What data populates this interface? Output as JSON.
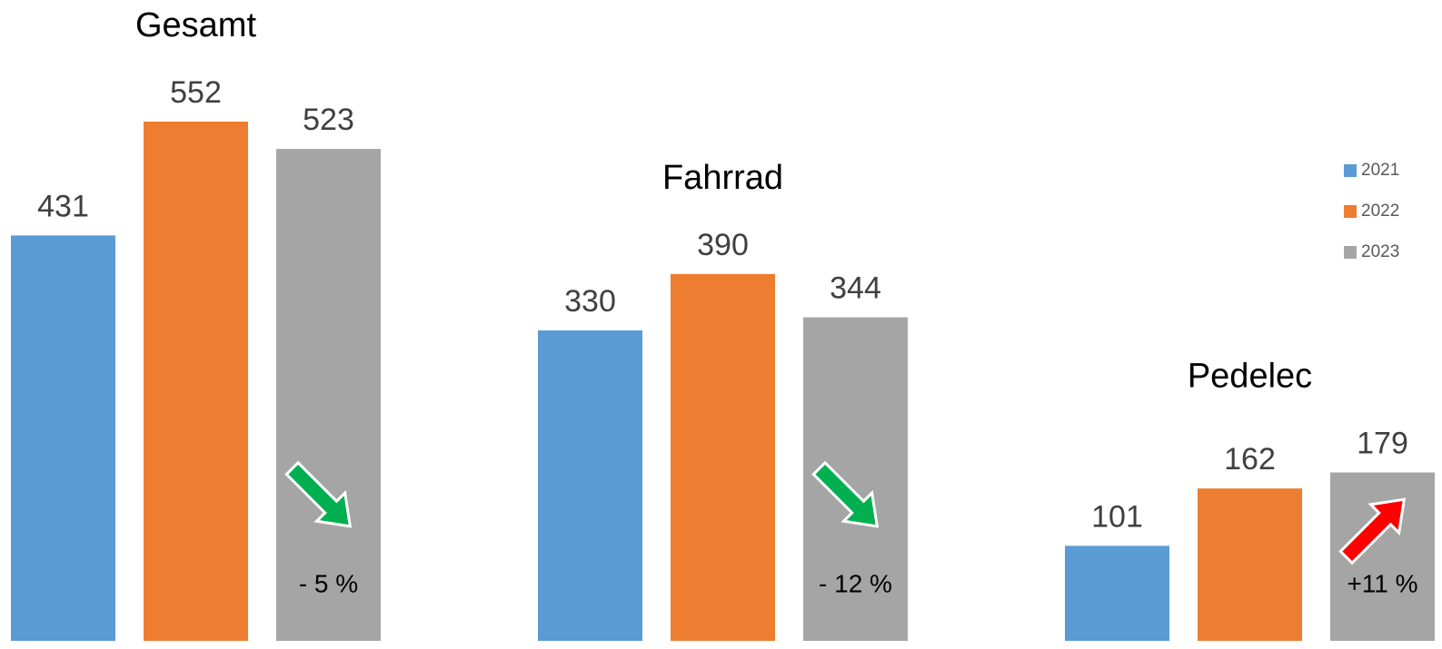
{
  "chart_data": {
    "type": "bar",
    "categories": [
      "Gesamt",
      "Fahrrad",
      "Pedelec"
    ],
    "series": [
      {
        "name": "2021",
        "color": "#5b9bd5",
        "values": [
          431,
          330,
          101
        ]
      },
      {
        "name": "2022",
        "color": "#ed7d31",
        "values": [
          552,
          390,
          162
        ]
      },
      {
        "name": "2023",
        "color": "#a5a5a5",
        "values": [
          523,
          344,
          179
        ]
      }
    ],
    "annotations": [
      {
        "text": "- 5 %",
        "direction": "down",
        "color": "#00b050"
      },
      {
        "text": "- 12 %",
        "direction": "down",
        "color": "#00b050"
      },
      {
        "text": "+11 %",
        "direction": "up",
        "color": "#ff0000"
      }
    ],
    "legend": "right"
  }
}
